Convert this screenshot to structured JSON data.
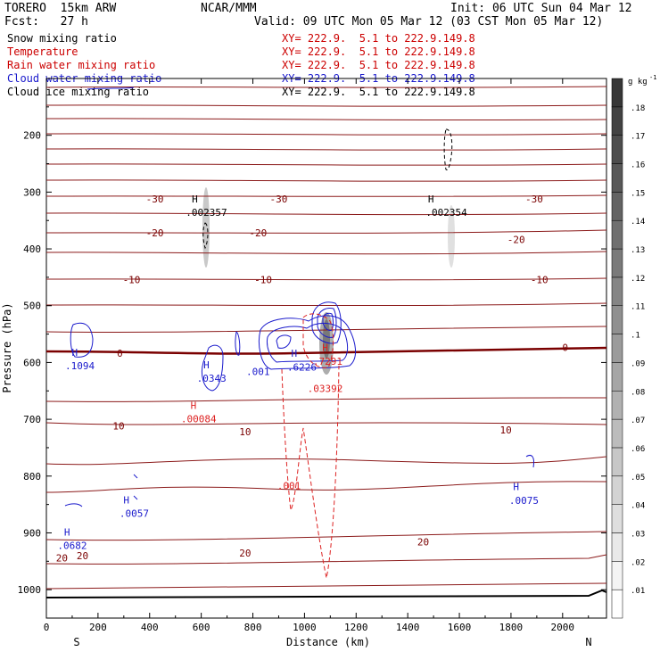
{
  "header": {
    "model": "TORERO  15km ARW",
    "org": "NCAR/MMM",
    "init": "Init: 06 UTC Sun 04 Mar 12",
    "fcst": "Fcst:   27 h",
    "valid": "Valid: 09 UTC Mon 05 Mar 12 (03 CST Mon 05 Mar 12)"
  },
  "legend": [
    {
      "name": "Snow mixing ratio",
      "color": "#000000",
      "xy": "XY= 222.9.  5.1 to 222.9.149.8",
      "xy_color": "#cc0000"
    },
    {
      "name": "Temperature",
      "color": "#cc0000",
      "xy": "XY= 222.9.  5.1 to 222.9.149.8",
      "xy_color": "#cc0000"
    },
    {
      "name": "Rain water mixing ratio",
      "color": "#cc0000",
      "xy": "XY= 222.9.  5.1 to 222.9.149.8",
      "xy_color": "#cc0000"
    },
    {
      "name": "Cloud water mixing ratio",
      "color": "#1a1acc",
      "xy": "XY= 222.9.  5.1 to 222.9.149.8",
      "xy_color": "#1a1acc"
    },
    {
      "name": "Cloud ice mixing ratio",
      "color": "#000000",
      "xy": "XY= 222.9.  5.1 to 222.9.149.8",
      "xy_color": "#000000"
    }
  ],
  "chart_data": {
    "type": "cross-section contour",
    "xlabel": "Distance (km)",
    "ylabel": "Pressure (hPa)",
    "xlim": [
      0,
      2170
    ],
    "ylim": [
      1050,
      100
    ],
    "x_ticks": [
      0,
      200,
      400,
      600,
      800,
      1000,
      1200,
      1400,
      1600,
      1800,
      2000
    ],
    "y_ticks": [
      200,
      300,
      400,
      500,
      600,
      700,
      800,
      900,
      1000
    ],
    "x_end_labels": {
      "left": "S",
      "right": "N"
    },
    "colorbar": {
      "unit": "g kg",
      "unit_exp": "-1",
      "labels": [
        ".01",
        ".02",
        ".03",
        ".04",
        ".05",
        ".06",
        ".07",
        ".08",
        ".09",
        ".1",
        ".11",
        ".12",
        ".13",
        ".14",
        ".15",
        ".16",
        ".17",
        ".18"
      ]
    },
    "temperature_labels": [
      {
        "text": "-30",
        "x": 420,
        "p": 318
      },
      {
        "text": "-30",
        "x": 900,
        "p": 318
      },
      {
        "text": "-30",
        "x": 1890,
        "p": 318
      },
      {
        "text": "-20",
        "x": 420,
        "p": 378
      },
      {
        "text": "-20",
        "x": 820,
        "p": 378
      },
      {
        "text": "-20",
        "x": 1820,
        "p": 390
      },
      {
        "text": "-10",
        "x": 330,
        "p": 460
      },
      {
        "text": "-10",
        "x": 840,
        "p": 460
      },
      {
        "text": "-10",
        "x": 1910,
        "p": 460
      },
      {
        "text": "0",
        "x": 285,
        "p": 590
      },
      {
        "text": "0",
        "x": 2010,
        "p": 580
      },
      {
        "text": "10",
        "x": 280,
        "p": 718
      },
      {
        "text": "10",
        "x": 770,
        "p": 728
      },
      {
        "text": "10",
        "x": 1780,
        "p": 725
      },
      {
        "text": "20",
        "x": 60,
        "p": 950
      },
      {
        "text": "20",
        "x": 140,
        "p": 946
      },
      {
        "text": "20",
        "x": 770,
        "p": 942
      },
      {
        "text": "20",
        "x": 1460,
        "p": 922
      }
    ],
    "cloud_water_labels": [
      {
        "text": "H",
        "x": 110,
        "p": 588
      },
      {
        "text": ".1094",
        "x": 130,
        "p": 612
      },
      {
        "text": "H",
        "x": 620,
        "p": 610
      },
      {
        "text": ".0343",
        "x": 640,
        "p": 634
      },
      {
        "text": ".001",
        "x": 820,
        "p": 622
      },
      {
        "text": "H",
        "x": 960,
        "p": 590
      },
      {
        "text": ".6226",
        "x": 990,
        "p": 614
      },
      {
        "text": "H",
        "x": 310,
        "p": 848
      },
      {
        "text": ".0057",
        "x": 340,
        "p": 872
      },
      {
        "text": "H",
        "x": 80,
        "p": 905
      },
      {
        "text": ".0682",
        "x": 100,
        "p": 928
      },
      {
        "text": "H",
        "x": 1820,
        "p": 825
      },
      {
        "text": ".0075",
        "x": 1850,
        "p": 849
      }
    ],
    "rain_labels": [
      {
        "text": "H",
        "x": 570,
        "p": 682
      },
      {
        "text": ".00084",
        "x": 590,
        "p": 705
      },
      {
        "text": "H",
        "x": 1080,
        "p": 580
      },
      {
        "text": ".7291",
        "x": 1090,
        "p": 604
      },
      {
        "text": ".03392",
        "x": 1080,
        "p": 652
      },
      {
        "text": ".001",
        "x": 940,
        "p": 823
      }
    ],
    "ice_labels": [
      {
        "text": "H",
        "x": 575,
        "p": 318
      },
      {
        "text": ".002357",
        "x": 620,
        "p": 342
      },
      {
        "text": "H",
        "x": 1490,
        "p": 318
      },
      {
        "text": ".002354",
        "x": 1550,
        "p": 342
      }
    ]
  }
}
